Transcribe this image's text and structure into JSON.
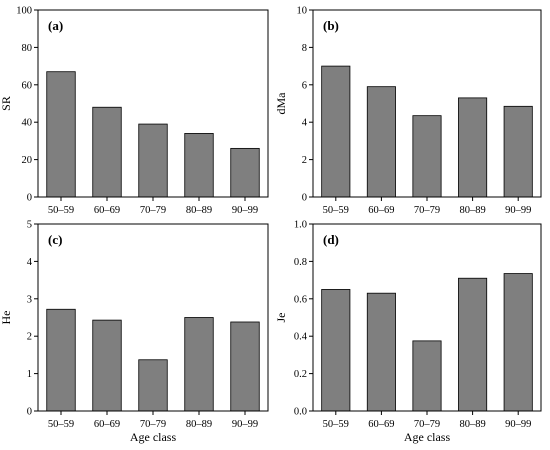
{
  "chart_data": [
    {
      "type": "bar",
      "panel_label": "(a)",
      "categories": [
        "50–59",
        "60–69",
        "70–79",
        "80–89",
        "90–99"
      ],
      "values": [
        67,
        48,
        39,
        34,
        26
      ],
      "xlabel": "",
      "ylabel": "SR",
      "ylim": [
        0,
        100
      ],
      "yticks": [
        0,
        20,
        40,
        60,
        80,
        100
      ],
      "ytick_labels": [
        "0",
        "20",
        "40",
        "60",
        "80",
        "100"
      ]
    },
    {
      "type": "bar",
      "panel_label": "(b)",
      "categories": [
        "50–59",
        "60–69",
        "70–79",
        "80–89",
        "90–99"
      ],
      "values": [
        7.0,
        5.9,
        4.35,
        5.3,
        4.85
      ],
      "xlabel": "",
      "ylabel": "dMa",
      "ylim": [
        0,
        10
      ],
      "yticks": [
        0,
        2,
        4,
        6,
        8,
        10
      ],
      "ytick_labels": [
        "0",
        "2",
        "4",
        "6",
        "8",
        "10"
      ]
    },
    {
      "type": "bar",
      "panel_label": "(c)",
      "categories": [
        "50–59",
        "60–69",
        "70–79",
        "80–89",
        "90–99"
      ],
      "values": [
        2.72,
        2.43,
        1.37,
        2.5,
        2.38
      ],
      "xlabel": "Age class",
      "ylabel": "He",
      "ylim": [
        0,
        5
      ],
      "yticks": [
        0,
        1,
        2,
        3,
        4,
        5
      ],
      "ytick_labels": [
        "0",
        "1",
        "2",
        "3",
        "4",
        "5"
      ]
    },
    {
      "type": "bar",
      "panel_label": "(d)",
      "categories": [
        "50–59",
        "60–69",
        "70–79",
        "80–89",
        "90–99"
      ],
      "values": [
        0.65,
        0.63,
        0.375,
        0.71,
        0.735
      ],
      "xlabel": "Age class",
      "ylabel": "Je",
      "ylim": [
        0,
        1.0
      ],
      "yticks": [
        0,
        0.2,
        0.4,
        0.6,
        0.8,
        1.0
      ],
      "ytick_labels": [
        "0.0",
        "0.2",
        "0.4",
        "0.6",
        "0.8",
        "1.0"
      ]
    }
  ],
  "colors": {
    "bar_fill": "#7f7f7f",
    "bar_stroke": "#000000"
  }
}
